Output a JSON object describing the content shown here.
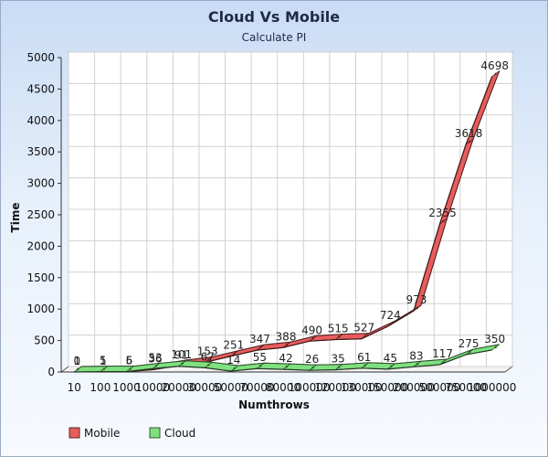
{
  "chart_data": {
    "type": "line",
    "title": "Cloud Vs Mobile",
    "subtitle": "Calculate PI",
    "xlabel": "Numthrows",
    "ylabel": "Time",
    "categories": [
      "10",
      "100",
      "1000",
      "10000",
      "20000",
      "30000",
      "50000",
      "70000",
      "80000",
      "100000",
      "120000",
      "130000",
      "150000",
      "200000",
      "500000",
      "750000",
      "1000000"
    ],
    "ylim": [
      0,
      5000
    ],
    "yticks": [
      0,
      500,
      1000,
      1500,
      2000,
      2500,
      3000,
      3500,
      4000,
      4500,
      5000
    ],
    "series": [
      {
        "name": "Mobile",
        "color": "#e85c5c",
        "values": [
          1,
          1,
          5,
          36,
          101,
          153,
          251,
          347,
          388,
          490,
          515,
          527,
          724,
          973,
          2355,
          3618,
          4698
        ]
      },
      {
        "name": "Cloud",
        "color": "#7fe07f",
        "values": [
          0,
          5,
          6,
          53,
          91,
          67,
          14,
          55,
          42,
          26,
          35,
          61,
          45,
          83,
          117,
          275,
          350
        ]
      }
    ],
    "legend_position": "bottom-left",
    "grid": true
  }
}
